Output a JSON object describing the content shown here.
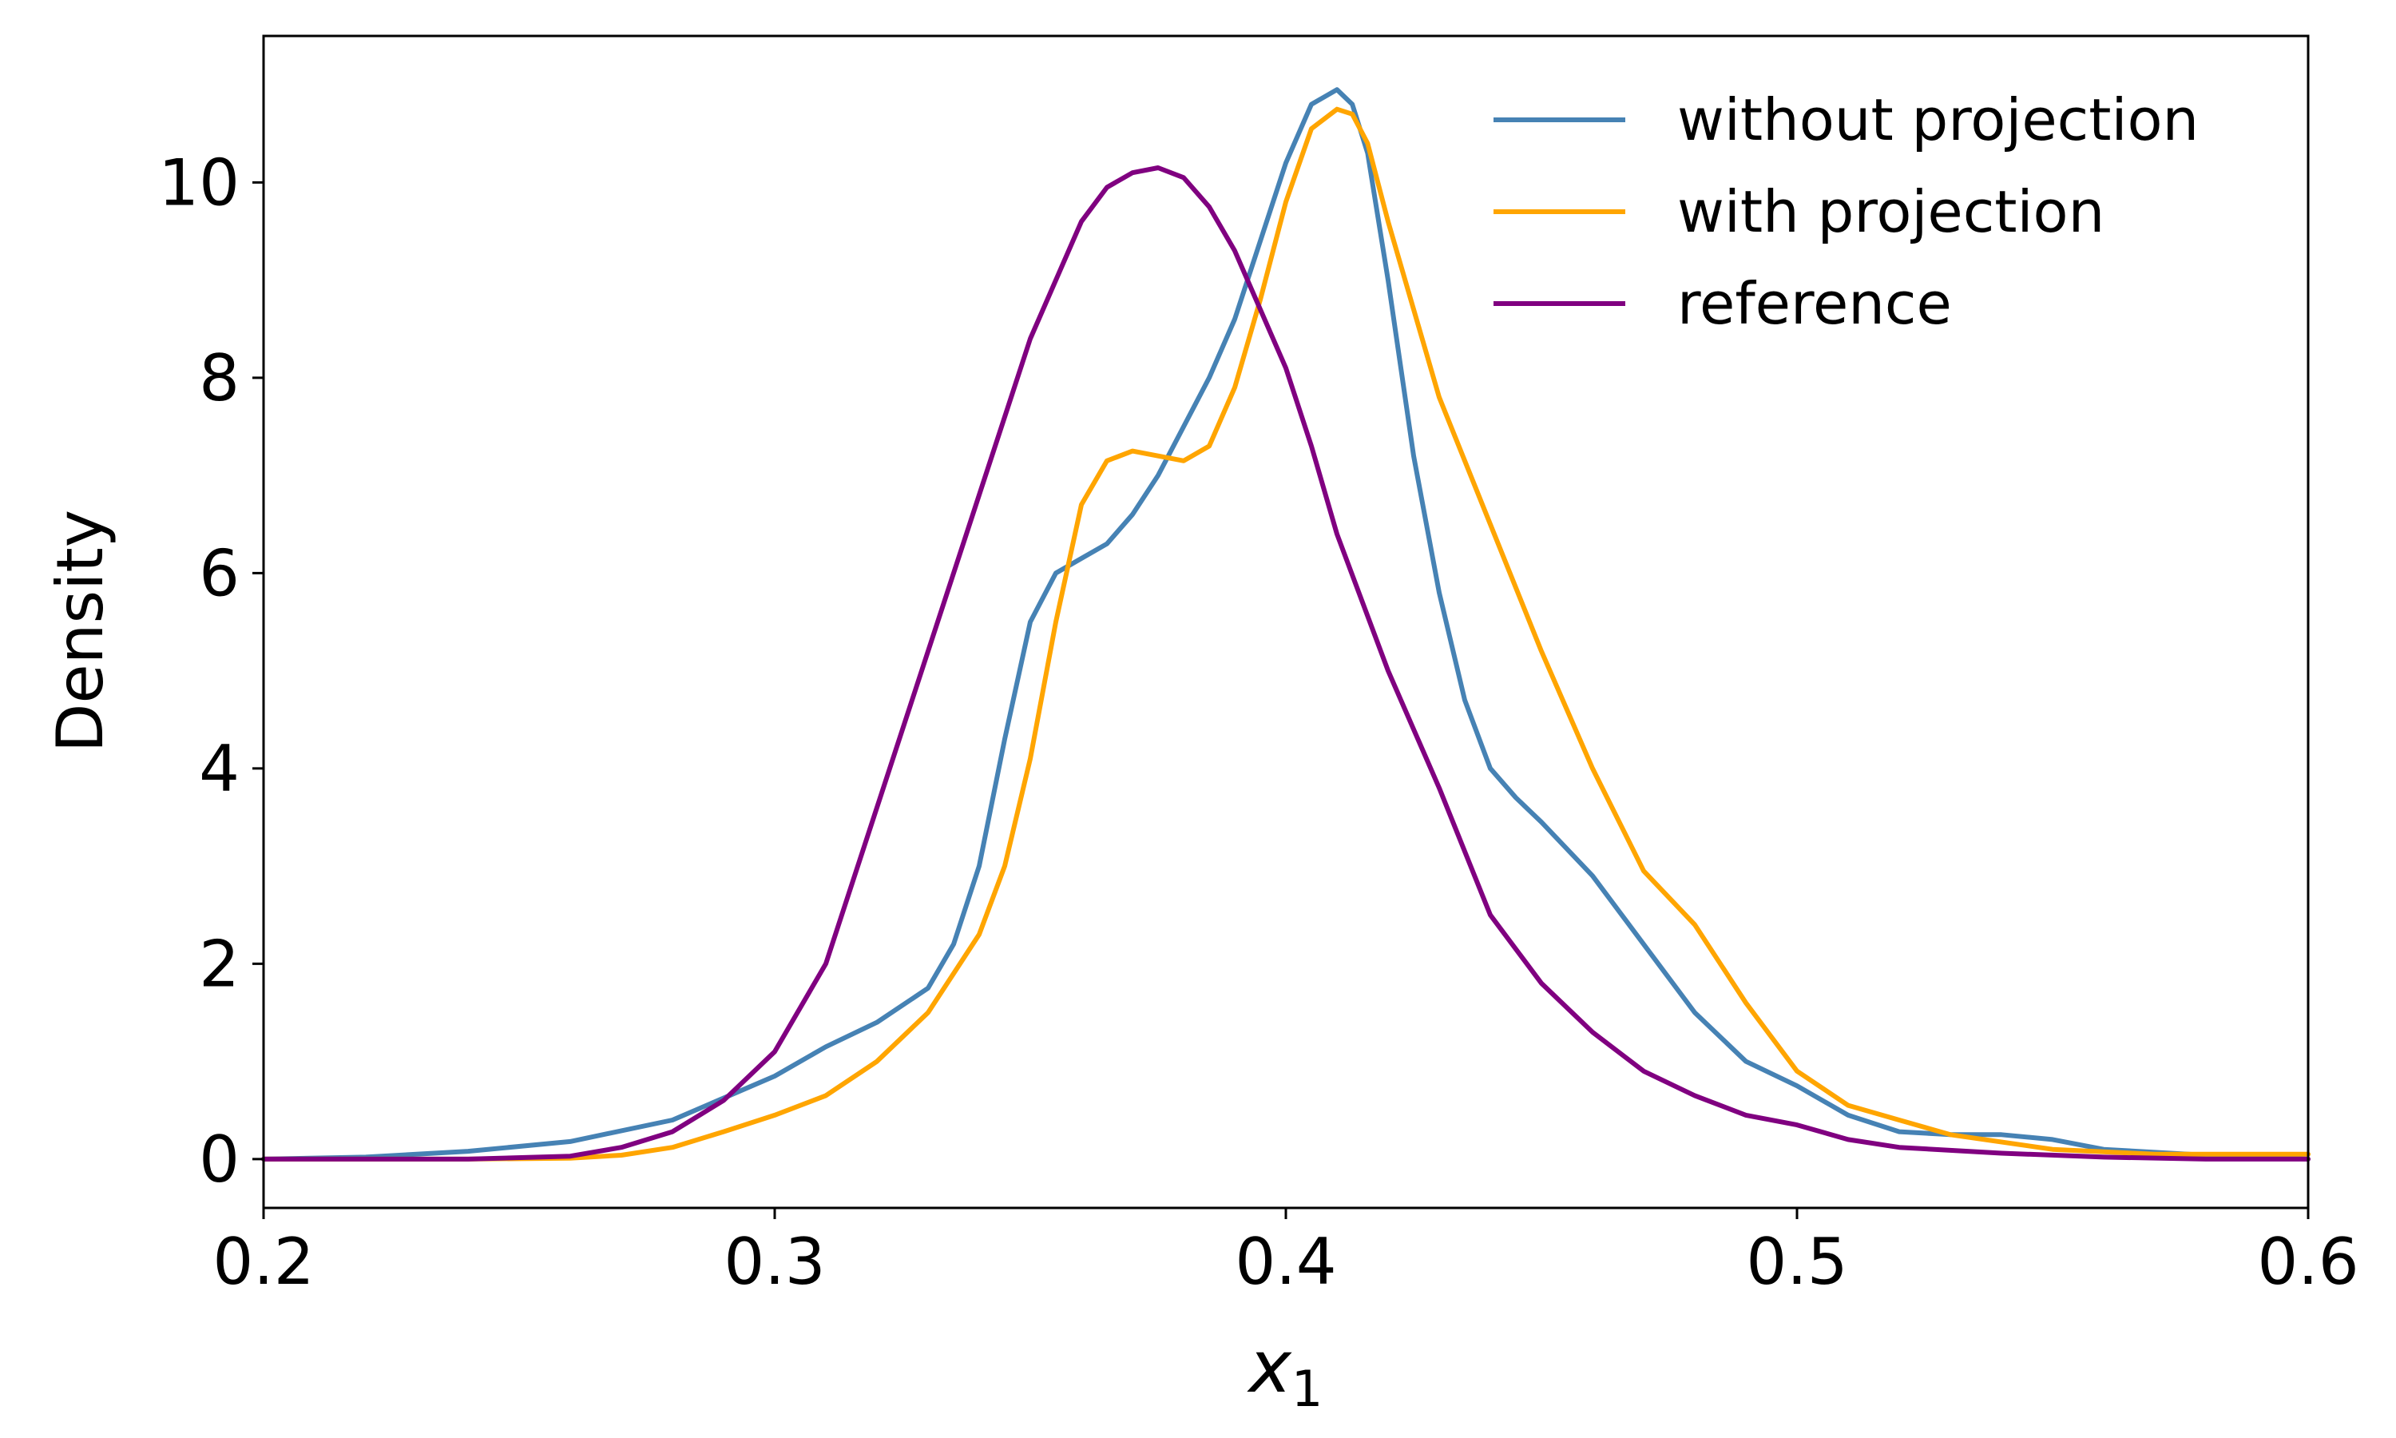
{
  "chart_data": {
    "type": "line",
    "title": "",
    "xlabel": "x",
    "xlabel_subscript": "1",
    "ylabel": "Density",
    "xlim": [
      0.2,
      0.6
    ],
    "ylim": [
      -0.5,
      11.5
    ],
    "xticks": [
      0.2,
      0.3,
      0.4,
      0.5,
      0.6
    ],
    "xtick_labels": [
      "0.2",
      "0.3",
      "0.4",
      "0.5",
      "0.6"
    ],
    "yticks": [
      0,
      2,
      4,
      6,
      8,
      10
    ],
    "ytick_labels": [
      "0",
      "2",
      "4",
      "6",
      "8",
      "10"
    ],
    "grid": false,
    "legend_position": "top-right",
    "series": [
      {
        "name": "without projection",
        "color": "#4682b4",
        "x": [
          0.2,
          0.22,
          0.24,
          0.26,
          0.28,
          0.3,
          0.31,
          0.32,
          0.33,
          0.335,
          0.34,
          0.345,
          0.35,
          0.355,
          0.36,
          0.365,
          0.37,
          0.375,
          0.38,
          0.385,
          0.39,
          0.395,
          0.4,
          0.405,
          0.41,
          0.413,
          0.416,
          0.42,
          0.425,
          0.43,
          0.435,
          0.44,
          0.445,
          0.45,
          0.46,
          0.47,
          0.48,
          0.49,
          0.5,
          0.51,
          0.52,
          0.53,
          0.54,
          0.55,
          0.56,
          0.58,
          0.6
        ],
        "y": [
          0.0,
          0.02,
          0.08,
          0.18,
          0.4,
          0.85,
          1.15,
          1.4,
          1.75,
          2.2,
          3.0,
          4.3,
          5.5,
          6.0,
          6.15,
          6.3,
          6.6,
          7.0,
          7.5,
          8.0,
          8.6,
          9.4,
          10.2,
          10.8,
          10.95,
          10.8,
          10.3,
          9.0,
          7.2,
          5.8,
          4.7,
          4.0,
          3.7,
          3.45,
          2.9,
          2.2,
          1.5,
          1.0,
          0.75,
          0.45,
          0.28,
          0.25,
          0.25,
          0.2,
          0.1,
          0.04,
          0.0
        ]
      },
      {
        "name": "with projection",
        "color": "#ffa500",
        "x": [
          0.2,
          0.22,
          0.24,
          0.26,
          0.27,
          0.28,
          0.29,
          0.3,
          0.31,
          0.32,
          0.33,
          0.34,
          0.345,
          0.35,
          0.355,
          0.36,
          0.365,
          0.37,
          0.375,
          0.38,
          0.385,
          0.39,
          0.395,
          0.4,
          0.405,
          0.41,
          0.413,
          0.416,
          0.42,
          0.43,
          0.44,
          0.45,
          0.46,
          0.47,
          0.48,
          0.49,
          0.5,
          0.51,
          0.52,
          0.53,
          0.55,
          0.57,
          0.6
        ],
        "y": [
          0.0,
          0.0,
          0.0,
          0.01,
          0.04,
          0.12,
          0.28,
          0.45,
          0.65,
          1.0,
          1.5,
          2.3,
          3.0,
          4.1,
          5.5,
          6.7,
          7.15,
          7.25,
          7.2,
          7.15,
          7.3,
          7.9,
          8.8,
          9.8,
          10.55,
          10.75,
          10.7,
          10.4,
          9.6,
          7.8,
          6.5,
          5.2,
          4.0,
          2.95,
          2.4,
          1.6,
          0.9,
          0.55,
          0.4,
          0.25,
          0.1,
          0.05,
          0.05
        ]
      },
      {
        "name": "reference",
        "color": "#800080",
        "x": [
          0.2,
          0.22,
          0.24,
          0.26,
          0.27,
          0.28,
          0.29,
          0.3,
          0.31,
          0.32,
          0.33,
          0.34,
          0.35,
          0.36,
          0.365,
          0.37,
          0.375,
          0.38,
          0.385,
          0.39,
          0.395,
          0.4,
          0.405,
          0.41,
          0.42,
          0.43,
          0.44,
          0.45,
          0.46,
          0.47,
          0.48,
          0.49,
          0.5,
          0.51,
          0.52,
          0.54,
          0.56,
          0.58,
          0.6
        ],
        "y": [
          0.0,
          0.0,
          0.0,
          0.03,
          0.12,
          0.28,
          0.6,
          1.1,
          2.0,
          3.6,
          5.2,
          6.8,
          8.4,
          9.6,
          9.95,
          10.1,
          10.15,
          10.05,
          9.75,
          9.3,
          8.7,
          8.1,
          7.3,
          6.4,
          5.0,
          3.8,
          2.5,
          1.8,
          1.3,
          0.9,
          0.65,
          0.45,
          0.35,
          0.2,
          0.12,
          0.06,
          0.02,
          0.0,
          0.0
        ]
      }
    ]
  }
}
